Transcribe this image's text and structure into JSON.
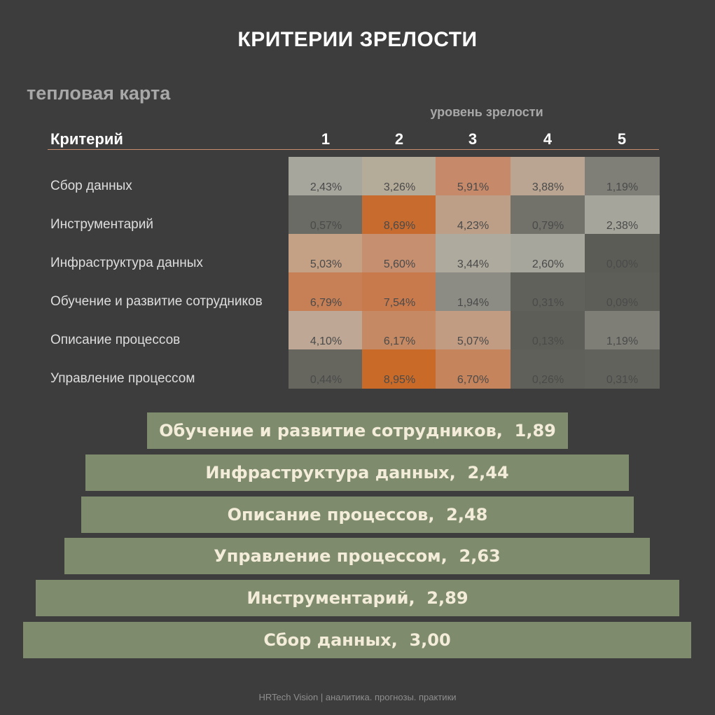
{
  "title": "КРИТЕРИИ ЗРЕЛОСТИ",
  "subtitle": "тепловая карта",
  "footer": "HRTech Vision | аналитика. прогнозы. практики",
  "chart_data": [
    {
      "type": "heatmap",
      "title": "тепловая карта",
      "x_axis_title": "уровень зрелости",
      "row_header": "Критерий",
      "columns": [
        "1",
        "2",
        "3",
        "4",
        "5"
      ],
      "rows": [
        {
          "label": "Сбор данных",
          "values": [
            "2,43%",
            "3,26%",
            "5,91%",
            "3,88%",
            "1,19%"
          ],
          "colors": [
            "#a7a69d",
            "#b5ab99",
            "#c6896a",
            "#b9a592",
            "#7f7f78"
          ]
        },
        {
          "label": "Инструментарий",
          "values": [
            "0,57%",
            "8,69%",
            "4,23%",
            "0,79%",
            "2,38%"
          ],
          "colors": [
            "#6b6b65",
            "#c86b2f",
            "#bd9f88",
            "#72726b",
            "#a5a59b"
          ]
        },
        {
          "label": "Инфраструктура данных",
          "values": [
            "5,03%",
            "5,60%",
            "3,44%",
            "2,60%",
            "0,00%"
          ],
          "colors": [
            "#c4a085",
            "#c58f70",
            "#aeaa9e",
            "#a6a69c",
            "#5c5c57"
          ]
        },
        {
          "label": "Обучение и развитие сотрудников",
          "values": [
            "6,79%",
            "7,54%",
            "1,94%",
            "0,31%",
            "0,09%"
          ],
          "colors": [
            "#c77f55",
            "#c87a4c",
            "#8c8c85",
            "#61615c",
            "#5e5e59"
          ]
        },
        {
          "label": "Описание процессов",
          "values": [
            "4,10%",
            "6,17%",
            "5,07%",
            "0,13%",
            "1,19%"
          ],
          "colors": [
            "#bea895",
            "#c58a63",
            "#c19c82",
            "#5e5e59",
            "#7e7e77"
          ]
        },
        {
          "label": "Управление процессом",
          "values": [
            "0,44%",
            "8,95%",
            "6,70%",
            "0,26%",
            "0,31%"
          ],
          "colors": [
            "#66665f",
            "#c96a28",
            "#c6845c",
            "#60605a",
            "#62625c"
          ]
        }
      ]
    },
    {
      "type": "bar",
      "orientation": "horizontal-centered",
      "categories": [
        "Обучение и развитие сотрудников",
        "Инфраструктура данных",
        "Описание процессов",
        "Управление процессом",
        "Инструментарий",
        "Сбор данных"
      ],
      "values": [
        1.89,
        2.44,
        2.48,
        2.63,
        2.89,
        3.0
      ],
      "labels": [
        "Обучение и развитие сотрудников,  1,89",
        "Инфраструктура данных,  2,44",
        "Описание процессов,  2,48",
        "Управление процессом,  2,63",
        "Инструментарий,  2,89",
        "Сбор данных,  3,00"
      ],
      "color": "#7e8b6c",
      "label_color": "#f3ecd9"
    }
  ]
}
